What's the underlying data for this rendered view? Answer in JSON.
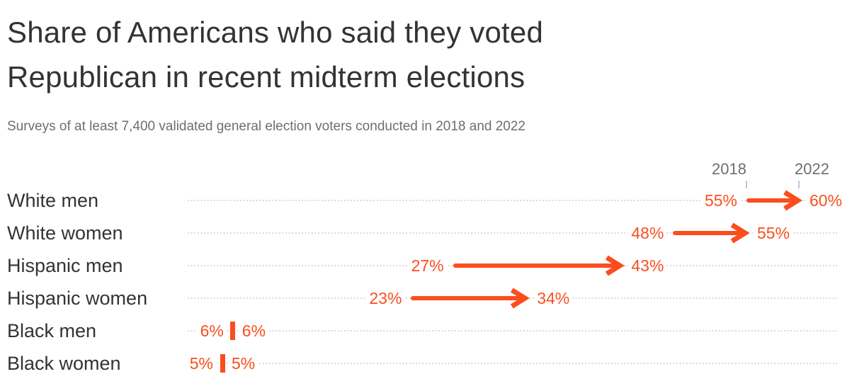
{
  "header": {
    "title_line1": "Share of Americans who said they voted",
    "title_line2": "Republican in recent midterm elections",
    "subtitle": "Surveys of at least 7,400 validated general election voters conducted in 2018 and 2022"
  },
  "chart_data": {
    "type": "arrow",
    "title": "Share of Americans who said they voted Republican in recent midterm elections",
    "subtitle": "Surveys of at least 7,400 validated general election voters conducted in 2018 and 2022",
    "categories": [
      "White men",
      "White women",
      "Hispanic men",
      "Hispanic women",
      "Black men",
      "Black women"
    ],
    "series": [
      {
        "name": "2018",
        "values": [
          55,
          48,
          27,
          23,
          6,
          5
        ]
      },
      {
        "name": "2022",
        "values": [
          60,
          55,
          43,
          34,
          6,
          5
        ]
      }
    ],
    "value_suffix": "%",
    "xlim": [
      0,
      66
    ],
    "grid": "dotted-row-leaders",
    "legend_position": "top-right-over-first-row",
    "colors": {
      "accent": "#fb4d1e",
      "title_text": "#333335",
      "subtitle_text": "#6e6e73",
      "category_text": "#333335",
      "year_text": "#6e6e73",
      "tick": "#c6c6c9",
      "leader_dots": "#dadada"
    }
  }
}
